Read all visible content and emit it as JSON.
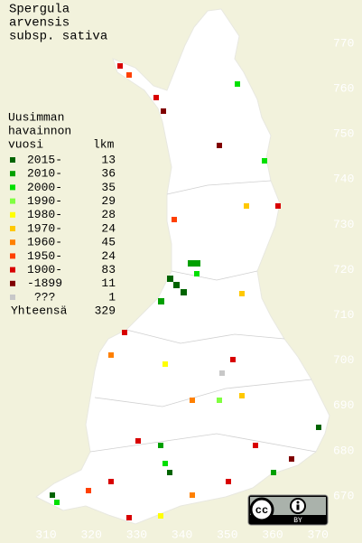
{
  "title_lines": [
    "Spergula",
    "arvensis",
    "subsp. sativa"
  ],
  "legend": {
    "heading": [
      "Uusimman",
      "havainnon",
      "vuosi"
    ],
    "count_heading": "lkm",
    "entries": [
      {
        "label": "2015-",
        "count": 13,
        "color": "#006400"
      },
      {
        "label": "2010-",
        "count": 36,
        "color": "#00a000"
      },
      {
        "label": "2000-",
        "count": 35,
        "color": "#00e000"
      },
      {
        "label": "1990-",
        "count": 29,
        "color": "#80ff40"
      },
      {
        "label": "1980-",
        "count": 28,
        "color": "#ffff00"
      },
      {
        "label": "1970-",
        "count": 24,
        "color": "#ffc800"
      },
      {
        "label": "1960-",
        "count": 45,
        "color": "#ff8000"
      },
      {
        "label": "1950-",
        "count": 24,
        "color": "#ff4000"
      },
      {
        "label": "1900-",
        "count": 83,
        "color": "#d80000"
      },
      {
        "label": "-1899",
        "count": 11,
        "color": "#800000"
      },
      {
        "label": "???",
        "count": 1,
        "color": "#c8c8c8"
      }
    ],
    "total_label": "Yhteensä",
    "total": 329
  },
  "grid": {
    "northing_ticks": [
      770,
      760,
      750,
      740,
      730,
      720,
      710,
      700,
      690,
      680,
      670
    ],
    "easting_ticks": [
      310,
      320,
      330,
      340,
      350,
      360,
      370
    ]
  },
  "license": {
    "badge": "cc",
    "attribution": "BY"
  }
}
